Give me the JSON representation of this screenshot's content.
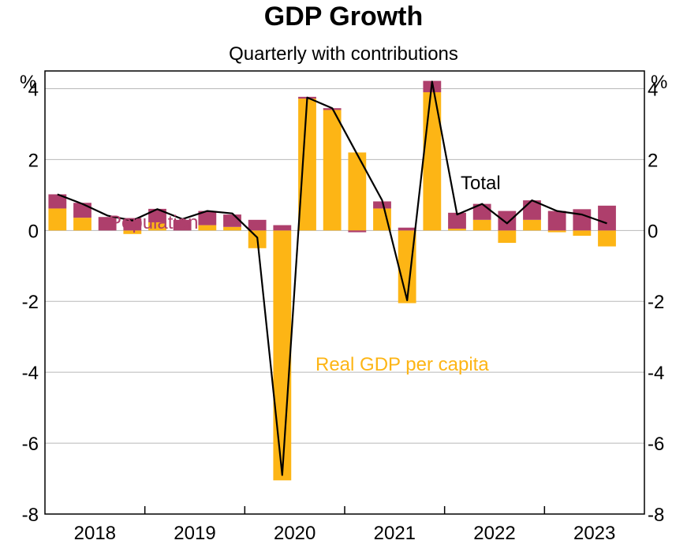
{
  "chart_data": {
    "type": "bar",
    "title": "GDP Growth",
    "subtitle": "Quarterly with contributions",
    "unit_left": "%",
    "unit_right": "%",
    "ylim": [
      -8,
      4.5
    ],
    "yticks": [
      "4",
      "2",
      "0",
      "-2",
      "-4",
      "-6",
      "-8"
    ],
    "ytick_values": [
      4,
      2,
      0,
      -2,
      -4,
      -6,
      -8
    ],
    "year_labels": [
      "2018",
      "2019",
      "2020",
      "2021",
      "2022",
      "2023"
    ],
    "quarters_per_year": 4,
    "grid": true,
    "stacked": true,
    "series": [
      {
        "name": "Real GDP per capita",
        "color": "#FDB515",
        "values": [
          0.62,
          0.36,
          0.0,
          -0.1,
          0.23,
          0.0,
          0.15,
          0.1,
          -0.5,
          -7.05,
          3.72,
          3.4,
          2.2,
          0.62,
          -2.05,
          3.9,
          0.05,
          0.3,
          -0.35,
          0.3,
          -0.05,
          -0.15,
          -0.45
        ]
      },
      {
        "name": "Population",
        "color": "#AE3F6C",
        "values": [
          0.4,
          0.42,
          0.38,
          0.35,
          0.38,
          0.3,
          0.4,
          0.35,
          0.3,
          0.15,
          0.05,
          0.05,
          -0.05,
          0.2,
          0.08,
          0.32,
          0.45,
          0.45,
          0.55,
          0.55,
          0.55,
          0.6,
          0.7
        ]
      },
      {
        "name": "Total",
        "color": "#000000",
        "type": "line",
        "values": [
          1.02,
          0.75,
          0.42,
          0.28,
          0.6,
          0.32,
          0.55,
          0.48,
          -0.2,
          -6.9,
          3.75,
          3.45,
          2.15,
          0.85,
          -1.97,
          4.2,
          0.45,
          0.75,
          0.2,
          0.85,
          0.55,
          0.45,
          0.2
        ]
      }
    ],
    "annotations": {
      "population": "Population",
      "gdp_per_capita": "Real GDP per capita",
      "total": "Total"
    }
  }
}
